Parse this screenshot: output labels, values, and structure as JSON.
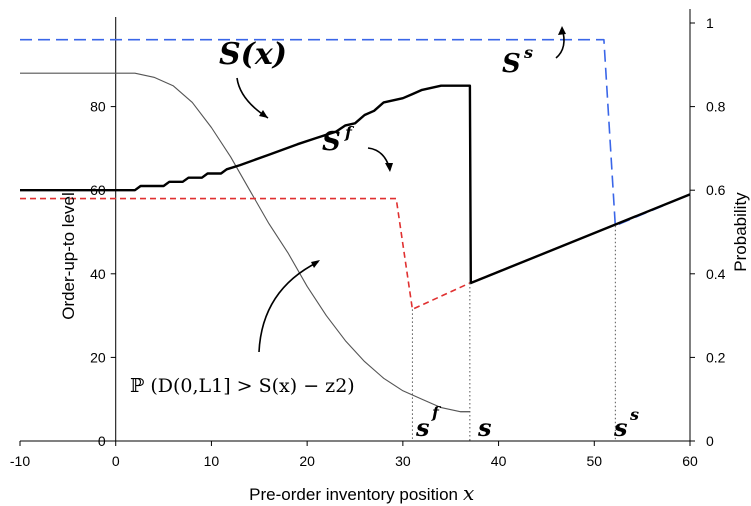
{
  "chart_data": {
    "type": "line",
    "x_axis": {
      "label": "Pre-order inventory position",
      "label_var": "x",
      "min": -10,
      "max": 60,
      "ticks": [
        -10,
        0,
        10,
        20,
        30,
        40,
        50,
        60
      ]
    },
    "y_axis_left": {
      "label": "Order-up-to level",
      "min": 0,
      "max": 100,
      "ticks": [
        0,
        20,
        40,
        60,
        80
      ],
      "tick_labels": [
        "0",
        "20",
        "40",
        "60",
        "80"
      ]
    },
    "y_axis_right": {
      "label": "Probability",
      "min": 0,
      "max": 1,
      "ticks": [
        0,
        0.2,
        0.4,
        0.6,
        0.8,
        1
      ],
      "tick_labels": [
        "0",
        "0.2",
        "0.4",
        "0.6",
        "0.8",
        "1"
      ]
    },
    "grid": false,
    "series": [
      {
        "name": "S(x)",
        "axis": "left",
        "color": "#000000",
        "style": "solid",
        "x": [
          -10,
          2,
          2.6,
          5,
          5.6,
          7,
          7.6,
          9,
          9.6,
          11,
          11.6,
          13,
          16,
          19,
          21,
          23,
          24,
          25,
          26,
          27,
          28,
          30,
          31,
          32,
          34,
          36,
          37,
          37.1,
          60
        ],
        "y": [
          60,
          60,
          61,
          61,
          62,
          62,
          63,
          63,
          64,
          64,
          65,
          66,
          68.5,
          71,
          72.5,
          74,
          75.5,
          76,
          78,
          79,
          81,
          82,
          83,
          84,
          85,
          85,
          85,
          37.8,
          59
        ]
      },
      {
        "name": "S^f",
        "axis": "left",
        "color": "#e03030",
        "style": "dashed",
        "x": [
          -10,
          29.3,
          31,
          37,
          60
        ],
        "y": [
          58,
          58,
          31.5,
          37.8,
          59
        ]
      },
      {
        "name": "S^s",
        "axis": "left",
        "color": "#3a66e8",
        "style": "dashed",
        "x": [
          -10,
          51,
          52.2,
          60
        ],
        "y": [
          96,
          96,
          51.5,
          59
        ]
      },
      {
        "name": "P(D_(0,L1] > S(x) - z2)",
        "axis": "right",
        "color": "#555555",
        "style": "solid",
        "x": [
          -10,
          2,
          4,
          6,
          8,
          10,
          12,
          14,
          16,
          18,
          20,
          22,
          24,
          26,
          28,
          30,
          32,
          34,
          36,
          37
        ],
        "y": [
          0.88,
          0.88,
          0.87,
          0.85,
          0.81,
          0.75,
          0.68,
          0.6,
          0.52,
          0.45,
          0.37,
          0.3,
          0.24,
          0.19,
          0.15,
          0.12,
          0.1,
          0.08,
          0.07,
          0.07
        ]
      }
    ],
    "annotations": [
      {
        "text": "S(x)",
        "role": "S(x) label"
      },
      {
        "text": "S",
        "sup": "f",
        "role": "S^f label"
      },
      {
        "text": "S",
        "sup": "s",
        "role": "S^s label"
      },
      {
        "text": "ℙ (D(0,L1] > S(x) − z2)",
        "role": "probability curve label"
      },
      {
        "text": "s",
        "sup": "f",
        "role": "x-axis marker s^f",
        "x": 31
      },
      {
        "text": "s",
        "sup": "",
        "role": "x-axis marker s",
        "x": 37
      },
      {
        "text": "s",
        "sup": "s",
        "role": "x-axis marker s^s",
        "x": 52.2
      }
    ]
  }
}
